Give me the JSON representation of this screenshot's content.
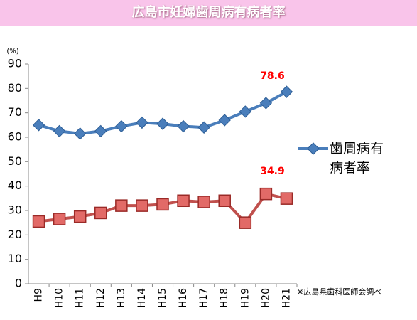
{
  "chart_data": {
    "type": "line",
    "title": "広島市妊婦歯周病有病者率",
    "y_label": "(%)",
    "note": "※広島県歯科医師会調べ",
    "categories": [
      "H9",
      "H10",
      "H11",
      "H12",
      "H13",
      "H14",
      "H15",
      "H16",
      "H17",
      "H18",
      "H19",
      "H20",
      "H21"
    ],
    "series": [
      {
        "name": "歯周病有病者率",
        "color": "#4a7ebb",
        "marker": "diamond",
        "values": [
          65,
          62.5,
          61.5,
          62.5,
          64.5,
          66,
          65.5,
          64.5,
          64,
          67,
          70.5,
          74,
          78.6
        ],
        "value_labels": [
          null,
          null,
          null,
          null,
          null,
          null,
          null,
          null,
          null,
          null,
          null,
          null,
          "78.6"
        ]
      },
      {
        "color": "#c0504d",
        "marker": "square",
        "values": [
          25.5,
          26.5,
          27.5,
          29,
          32,
          32,
          32.5,
          34,
          33.5,
          34,
          25,
          36.8,
          34.9
        ],
        "value_labels": [
          null,
          null,
          null,
          null,
          null,
          null,
          null,
          null,
          null,
          null,
          null,
          null,
          "34.9"
        ]
      }
    ],
    "ylim": [
      0,
      90
    ],
    "yticks": [
      0,
      10,
      20,
      30,
      40,
      50,
      60,
      70,
      80,
      90
    ],
    "grid": false,
    "legend": "right",
    "label_color": "#ff0000"
  }
}
